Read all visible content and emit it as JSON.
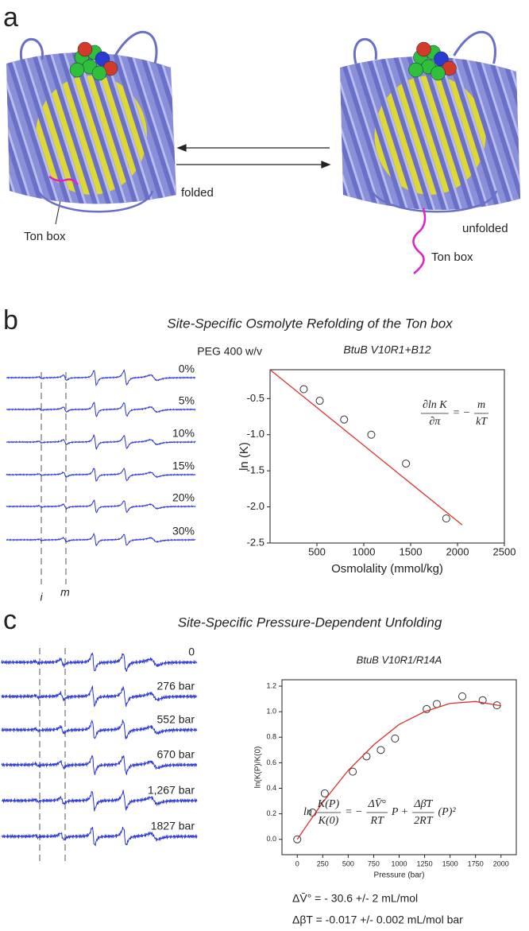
{
  "panel_a": {
    "label": "a",
    "state_left": "folded",
    "state_right": "unfolded",
    "ton_box_left": "Ton box",
    "ton_box_right": "Ton box"
  },
  "panel_b": {
    "label": "b",
    "title": "Site-Specific Osmolyte Refolding of the Ton box",
    "spectra_header": "PEG 400 w/v",
    "spectra_labels": [
      "0%",
      "5%",
      "10%",
      "15%",
      "20%",
      "30%"
    ],
    "markers": [
      "i",
      "m"
    ]
  },
  "panel_c": {
    "label": "c",
    "title": "Site-Specific Pressure-Dependent Unfolding",
    "spectra_labels": [
      "0",
      "276 bar",
      "552 bar",
      "670 bar",
      "1,267 bar",
      "1827 bar"
    ],
    "results": [
      "ΔV̄° = - 30.6 +/- 2 mL/mol",
      "ΔβT = -0.017 +/- 0.002 mL/mol bar"
    ]
  },
  "chart_data": [
    {
      "type": "scatter",
      "title": "BtuB V10R1+B12",
      "x_label": "Osmolality (mmol/kg)",
      "y_label": "ln (K)",
      "xlim": [
        0,
        2500
      ],
      "xticks": [
        500,
        1000,
        1500,
        2000,
        2500
      ],
      "ylim": [
        -2.5,
        -0.1
      ],
      "yticks": [
        -0.5,
        {
          "value": -1,
          "label": "-1.0"
        },
        -1.5,
        {
          "value": -2,
          "label": "-2.0"
        },
        -2.5
      ],
      "grid": false,
      "series": [
        {
          "style": "markers",
          "color": "#333333",
          "x": [
            360,
            530,
            790,
            1080,
            1450,
            1880
          ],
          "values": [
            -0.37,
            -0.53,
            -0.79,
            -1.0,
            -1.4,
            -2.16
          ]
        },
        {
          "style": "line",
          "color": "#e0302a",
          "x": [
            0,
            2050
          ],
          "values": [
            -0.1,
            -2.25
          ]
        }
      ],
      "equation": [
        {
          "num": "∂ln K",
          "den": "∂π"
        },
        {
          "text": "= −"
        },
        {
          "num": "m",
          "den": "kT"
        }
      ]
    },
    {
      "type": "scatter",
      "title": "BtuB V10R1/R14A",
      "x_label": "Pressure (bar)",
      "y_label": "ln(K(P)/K(0)",
      "xlim": [
        -150,
        2150
      ],
      "xticks": [
        0,
        250,
        500,
        750,
        1000,
        1250,
        1500,
        1750,
        2000
      ],
      "ylim": [
        -0.12,
        1.25
      ],
      "yticks": [
        {
          "value": 0,
          "label": "0.0"
        },
        0.2,
        0.4,
        0.6,
        0.8,
        {
          "value": 1,
          "label": "1.0"
        },
        1.2
      ],
      "grid": false,
      "series": [
        {
          "style": "markers",
          "color": "#333333",
          "x": [
            0,
            150,
            270,
            545,
            680,
            820,
            960,
            1270,
            1370,
            1620,
            1820,
            1960
          ],
          "values": [
            0.0,
            0.21,
            0.36,
            0.53,
            0.65,
            0.7,
            0.79,
            1.02,
            1.06,
            1.12,
            1.09,
            1.05
          ]
        },
        {
          "style": "line",
          "color": "#e0302a",
          "x": [
            0,
            250,
            500,
            750,
            1000,
            1250,
            1500,
            1750,
            2000
          ],
          "values": [
            0.0,
            0.29,
            0.54,
            0.74,
            0.9,
            1.0,
            1.065,
            1.08,
            1.046
          ]
        }
      ],
      "equation": [
        {
          "text": "ln"
        },
        {
          "num": "K(P)",
          "den": "K(0)"
        },
        {
          "text": "= −"
        },
        {
          "num": "ΔV̄°",
          "den": "RT"
        },
        {
          "text": "P +"
        },
        {
          "num": "Δβ̄T",
          "den": "2RT"
        },
        {
          "text": "(P)²"
        }
      ]
    }
  ]
}
